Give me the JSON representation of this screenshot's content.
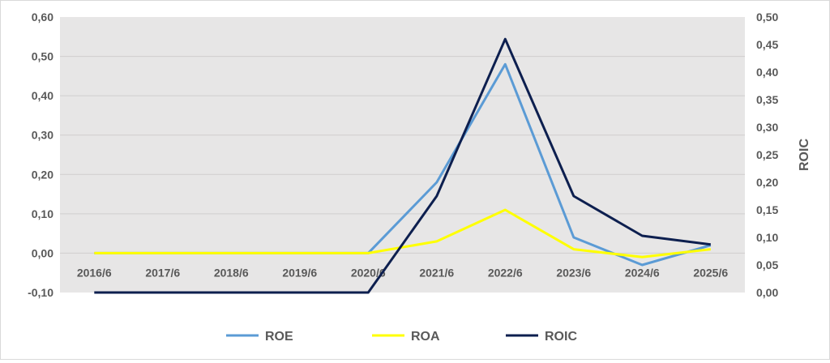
{
  "chart_data": {
    "type": "line",
    "categories": [
      "2016/6",
      "2017/6",
      "2018/6",
      "2019/6",
      "2020/6",
      "2021/6",
      "2022/6",
      "2023/6",
      "2024/6",
      "2025/6"
    ],
    "y_left": {
      "range": [
        -0.1,
        0.6
      ],
      "ticks": [
        "-0,10",
        "0,00",
        "0,10",
        "0,20",
        "0,30",
        "0,40",
        "0,50",
        "0,60"
      ],
      "label": ""
    },
    "y_right": {
      "range": [
        0.0,
        0.5
      ],
      "ticks": [
        "0,00",
        "0,05",
        "0,10",
        "0,15",
        "0,20",
        "0,25",
        "0,30",
        "0,35",
        "0,40",
        "0,45",
        "0,50"
      ],
      "label": "ROIC"
    },
    "series": [
      {
        "name": "ROE",
        "axis": "left",
        "color": "#5b9bd5",
        "values": [
          0.0,
          0.0,
          0.0,
          0.0,
          0.0,
          0.18,
          0.48,
          0.04,
          -0.03,
          0.02
        ]
      },
      {
        "name": "ROA",
        "axis": "left",
        "color": "#ffff00",
        "values": [
          0.0,
          0.0,
          0.0,
          0.0,
          0.0,
          0.03,
          0.11,
          0.01,
          -0.01,
          0.01
        ]
      },
      {
        "name": "ROIC",
        "axis": "right",
        "color": "#0d1f4f",
        "values": [
          0.0,
          0.0,
          0.0,
          0.0,
          0.0,
          0.175,
          0.46,
          0.175,
          0.103,
          0.087
        ]
      }
    ],
    "grid": true,
    "legend_position": "bottom"
  }
}
